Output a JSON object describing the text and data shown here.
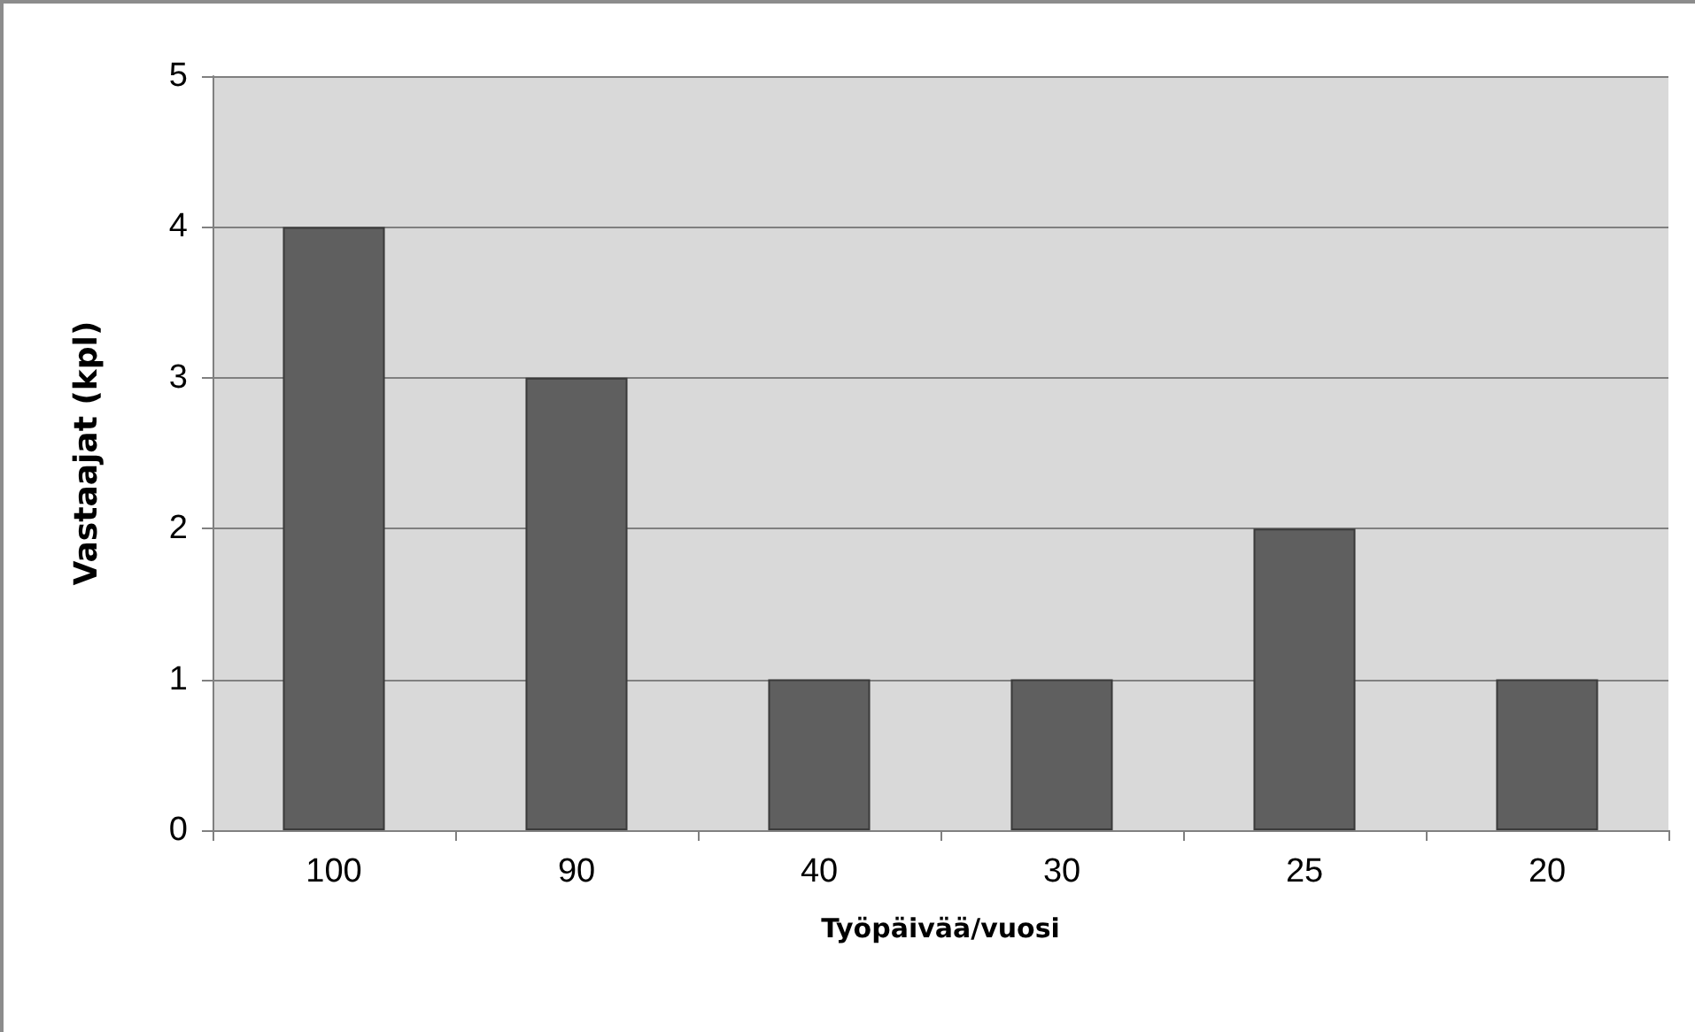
{
  "chart_data": {
    "type": "bar",
    "xlabel": "Työpäivää/vuosi",
    "ylabel": "Vastaajat (kpl)",
    "categories": [
      "100",
      "90",
      "40",
      "30",
      "25",
      "20"
    ],
    "values": [
      4,
      3,
      1,
      1,
      2,
      1
    ],
    "color": "#5f5f5f",
    "ylim": [
      0,
      5
    ],
    "yticks": [
      0,
      1,
      2,
      3,
      4,
      5
    ],
    "grid": "y"
  }
}
